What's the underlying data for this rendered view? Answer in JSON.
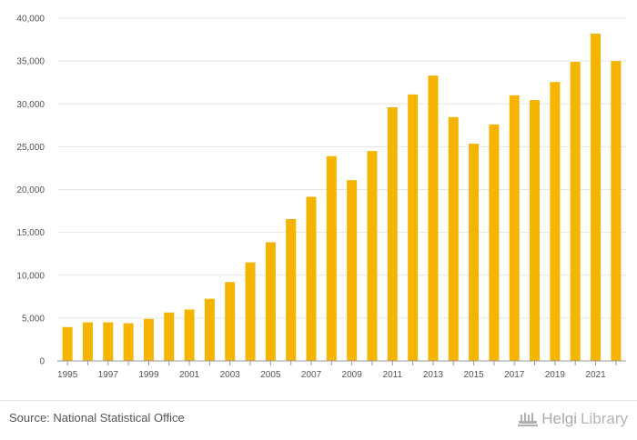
{
  "colors": {
    "bar": "#F5B400",
    "grid": "#e6e6e6",
    "axis": "#999999",
    "text": "#555555"
  },
  "chart_data": {
    "type": "bar",
    "title": "",
    "xlabel": "",
    "ylabel": "",
    "ylim": [
      0,
      40000
    ],
    "yticks": [
      0,
      5000,
      10000,
      15000,
      20000,
      25000,
      30000,
      35000,
      40000
    ],
    "ytick_labels": [
      "0",
      "5,000",
      "10,000",
      "15,000",
      "20,000",
      "25,000",
      "30,000",
      "35,000",
      "40,000"
    ],
    "categories": [
      "1995",
      "1996",
      "1997",
      "1998",
      "1999",
      "2000",
      "2001",
      "2002",
      "2003",
      "2004",
      "2005",
      "2006",
      "2007",
      "2008",
      "2009",
      "2010",
      "2011",
      "2012",
      "2013",
      "2014",
      "2015",
      "2016",
      "2017",
      "2018",
      "2019",
      "2020",
      "2021",
      "2022"
    ],
    "xtick_labels": [
      "1995",
      "1997",
      "1999",
      "2001",
      "2003",
      "2005",
      "2007",
      "2009",
      "2011",
      "2013",
      "2015",
      "2017",
      "2019",
      "2021"
    ],
    "values": [
      3950,
      4500,
      4500,
      4400,
      4900,
      5650,
      6000,
      7250,
      9200,
      11500,
      13850,
      16550,
      19150,
      23900,
      21100,
      24500,
      29600,
      31100,
      33300,
      28450,
      25350,
      27600,
      31000,
      30450,
      32550,
      34900,
      38200,
      35000
    ]
  },
  "footer": {
    "source": "Source: National Statistical Office",
    "brand_part1": "Helgi",
    "brand_part2": "Library"
  }
}
